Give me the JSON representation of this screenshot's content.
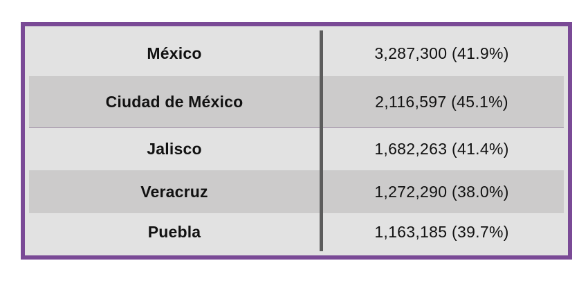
{
  "chart_data": {
    "type": "table",
    "columns": [
      "",
      ""
    ],
    "rows": [
      {
        "state": "México",
        "value": "3,287,300 (41.9%)"
      },
      {
        "state": "Ciudad de México",
        "value": "2,116,597 (45.1%)"
      },
      {
        "state": "Jalisco",
        "value": "1,682,263 (41.4%)"
      },
      {
        "state": "Veracruz",
        "value": "1,272,290 (38.0%)"
      },
      {
        "state": "Puebla",
        "value": "1,163,185 (39.7%)"
      }
    ]
  },
  "colors": {
    "border": "#7a4a96",
    "row_light": "#e2e2e2",
    "row_shaded": "#cccbcb",
    "divider": "#5c5c5c"
  }
}
